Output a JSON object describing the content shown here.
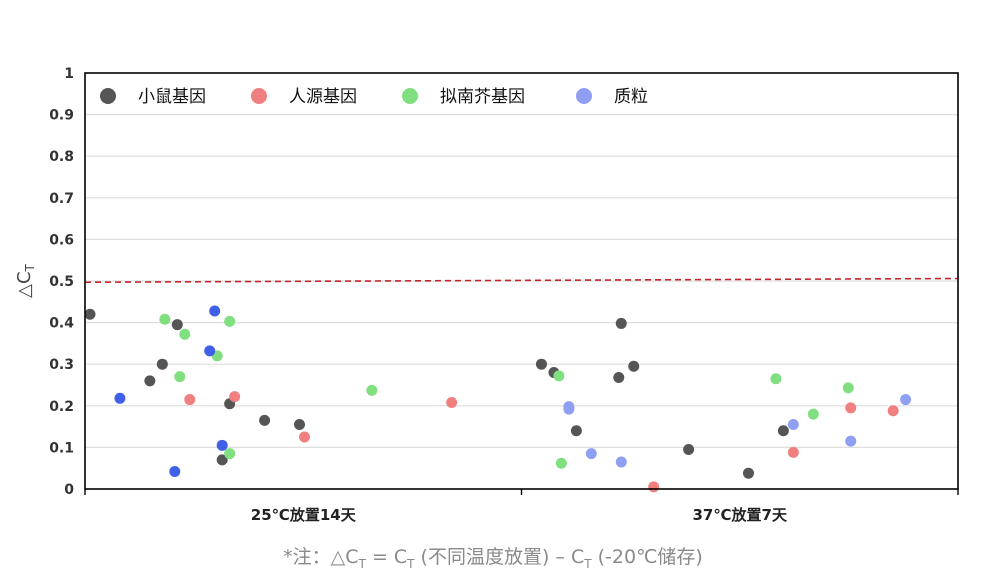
{
  "chart_data": {
    "type": "scatter",
    "ylabel_prefix": "△C",
    "ylabel_sub": "T",
    "ylim": [
      0,
      1
    ],
    "y_ticks": [
      "0",
      "0.1",
      "0.2",
      "0.3",
      "0.4",
      "0.5",
      "0.6",
      "0.7",
      "0.8",
      "0.9",
      "1"
    ],
    "categories": [
      "25℃放置14天",
      "37℃放置7天"
    ],
    "grid": true,
    "legend_position": "top-left",
    "threshold": {
      "value": 0.5,
      "color": "#c0262d"
    },
    "series": [
      {
        "name": "小鼠基因",
        "color": "#555555",
        "points": [
          {
            "x": 0.52,
            "y": 0.42
          },
          {
            "x": 0.76,
            "y": 0.26
          },
          {
            "x": 0.81,
            "y": 0.3
          },
          {
            "x": 0.87,
            "y": 0.395
          },
          {
            "x": 1.05,
            "y": 0.07
          },
          {
            "x": 1.08,
            "y": 0.205
          },
          {
            "x": 1.22,
            "y": 0.165
          },
          {
            "x": 1.36,
            "y": 0.155
          },
          {
            "x": 2.33,
            "y": 0.3
          },
          {
            "x": 2.38,
            "y": 0.28
          },
          {
            "x": 2.47,
            "y": 0.14
          },
          {
            "x": 2.64,
            "y": 0.268
          },
          {
            "x": 2.65,
            "y": 0.398
          },
          {
            "x": 2.7,
            "y": 0.295
          },
          {
            "x": 2.92,
            "y": 0.095
          },
          {
            "x": 3.16,
            "y": 0.038
          },
          {
            "x": 3.3,
            "y": 0.14
          }
        ]
      },
      {
        "name": "人源基因",
        "color": "#f08080",
        "points": [
          {
            "x": 0.92,
            "y": 0.215
          },
          {
            "x": 1.1,
            "y": 0.222
          },
          {
            "x": 1.38,
            "y": 0.125
          },
          {
            "x": 1.97,
            "y": 0.208
          },
          {
            "x": 2.78,
            "y": 0.005
          },
          {
            "x": 3.34,
            "y": 0.088
          },
          {
            "x": 3.57,
            "y": 0.195
          },
          {
            "x": 3.74,
            "y": 0.188
          }
        ]
      },
      {
        "name": "拟南芥基因",
        "color": "#80e080",
        "points": [
          {
            "x": 0.82,
            "y": 0.408
          },
          {
            "x": 0.88,
            "y": 0.27
          },
          {
            "x": 0.9,
            "y": 0.372
          },
          {
            "x": 1.03,
            "y": 0.32
          },
          {
            "x": 1.08,
            "y": 0.085
          },
          {
            "x": 1.08,
            "y": 0.403
          },
          {
            "x": 1.65,
            "y": 0.237
          },
          {
            "x": 2.4,
            "y": 0.272
          },
          {
            "x": 2.41,
            "y": 0.062
          },
          {
            "x": 3.27,
            "y": 0.265
          },
          {
            "x": 3.42,
            "y": 0.18
          },
          {
            "x": 3.56,
            "y": 0.243
          }
        ]
      },
      {
        "name": "质粒",
        "color": "#8fa0f2",
        "points": [
          {
            "x": 2.44,
            "y": 0.198
          },
          {
            "x": 2.44,
            "y": 0.192
          },
          {
            "x": 2.53,
            "y": 0.085
          },
          {
            "x": 2.65,
            "y": 0.065
          },
          {
            "x": 3.34,
            "y": 0.155
          },
          {
            "x": 3.57,
            "y": 0.115
          },
          {
            "x": 3.79,
            "y": 0.215
          }
        ]
      },
      {
        "name": "",
        "color": "#4060e8",
        "points": [
          {
            "x": 0.64,
            "y": 0.218
          },
          {
            "x": 0.86,
            "y": 0.042
          },
          {
            "x": 1.0,
            "y": 0.332
          },
          {
            "x": 1.02,
            "y": 0.428
          },
          {
            "x": 1.05,
            "y": 0.105
          }
        ]
      }
    ]
  },
  "footnote": {
    "star": "*注：",
    "delta": "△C",
    "sub1": "T",
    "eq": " = C",
    "sub2": "T",
    "mid": " (不同温度放置) – C",
    "sub3": "T",
    "end": " (-20℃储存)"
  }
}
